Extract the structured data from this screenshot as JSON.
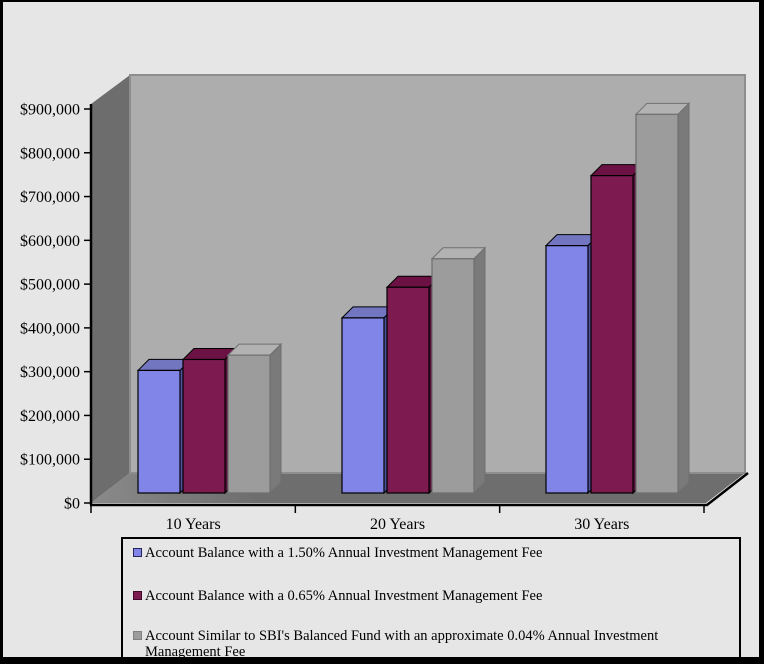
{
  "chart_data": {
    "type": "bar",
    "style": "3d-clustered-column",
    "title": "",
    "xlabel": "",
    "ylabel": "",
    "categories": [
      "10 Years",
      "20 Years",
      "30 Years"
    ],
    "series": [
      {
        "name": "Account Balance with a 1.50% Annual Investment Management Fee",
        "values": [
          280000,
          400000,
          565000
        ],
        "color": "#8285E8"
      },
      {
        "name": "Account Balance with a 0.65% Annual Investment Management Fee",
        "values": [
          305000,
          470000,
          725000
        ],
        "color": "#7D1A50"
      },
      {
        "name": "Account Similar to SBI's Balanced Fund with an approximate 0.04% Annual Investment Management Fee",
        "values": [
          315000,
          535000,
          865000
        ],
        "color": "#9C9C9C"
      }
    ],
    "ylim": [
      0,
      900000
    ],
    "ytick_step": 100000,
    "ytick_labels": [
      "$0",
      "$100,000",
      "$200,000",
      "$300,000",
      "$400,000",
      "$500,000",
      "$600,000",
      "$700,000",
      "$800,000",
      "$900,000"
    ],
    "grid": false,
    "legend_position": "bottom"
  },
  "colors": {
    "frame": "#000000",
    "background": "#E6E6E6",
    "back_wall": "#ADADAD",
    "back_wall_border": "#8E8E8E",
    "side_wall": "#6D6D6D",
    "floor_light": "#8A8A8A",
    "floor_dark": "#6E6E6E",
    "axis": "#000000",
    "text": "#000000",
    "series_tops": [
      "#7276C0",
      "#6B1144",
      "#B2B2B2"
    ],
    "series_sides": [
      "#4E519B",
      "#540E39",
      "#7A7A7A"
    ],
    "series_outlines": [
      "#000000",
      "#000000",
      "#6F6F6F"
    ],
    "swatch_borders": [
      "#26265E",
      "#3F0826",
      "#808080"
    ]
  }
}
